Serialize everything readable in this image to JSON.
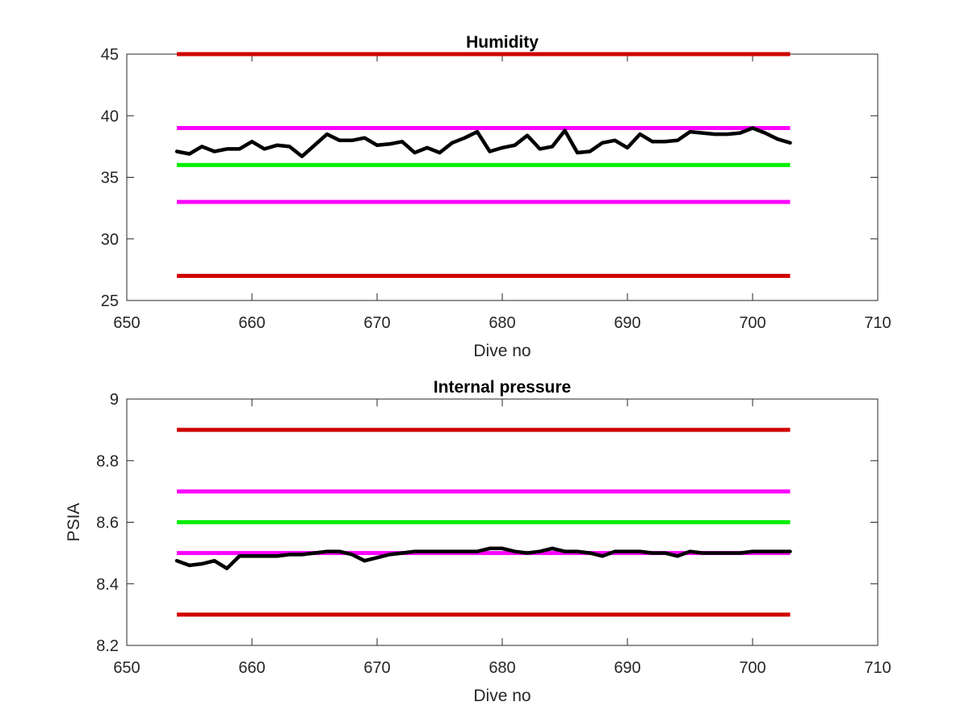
{
  "chart_data": [
    {
      "type": "line",
      "title": "Humidity",
      "xlabel": "Dive no",
      "ylabel": "",
      "xlim": [
        650,
        710
      ],
      "ylim": [
        25,
        45
      ],
      "xticks": [
        "650",
        "660",
        "670",
        "680",
        "690",
        "700",
        "710"
      ],
      "yticks": [
        "25",
        "30",
        "35",
        "40",
        "45"
      ],
      "grid": false,
      "legend": "none",
      "reference_lines": [
        {
          "y": 45,
          "x_range": [
            654,
            703
          ],
          "color": "#d00000"
        },
        {
          "y": 39,
          "x_range": [
            654,
            703
          ],
          "color": "#ff00ff"
        },
        {
          "y": 36,
          "x_range": [
            654,
            703
          ],
          "color": "#00ee00"
        },
        {
          "y": 33,
          "x_range": [
            654,
            703
          ],
          "color": "#ff00ff"
        },
        {
          "y": 27,
          "x_range": [
            654,
            703
          ],
          "color": "#d00000"
        }
      ],
      "series": [
        {
          "color": "#000000",
          "x": [
            654,
            655,
            656,
            657,
            658,
            659,
            660,
            661,
            662,
            663,
            664,
            665,
            666,
            667,
            668,
            669,
            670,
            671,
            672,
            673,
            674,
            675,
            676,
            677,
            678,
            679,
            680,
            681,
            682,
            683,
            684,
            685,
            686,
            687,
            688,
            689,
            690,
            691,
            692,
            693,
            694,
            695,
            696,
            697,
            698,
            699,
            700,
            701,
            702,
            703
          ],
          "y": [
            37.1,
            36.9,
            37.5,
            37.1,
            37.3,
            37.3,
            37.9,
            37.3,
            37.6,
            37.5,
            36.7,
            37.6,
            38.5,
            38.0,
            38.0,
            38.2,
            37.6,
            37.7,
            37.9,
            37.0,
            37.4,
            37.0,
            37.8,
            38.2,
            38.7,
            37.1,
            37.4,
            37.6,
            38.4,
            37.3,
            37.5,
            38.8,
            37.0,
            37.1,
            37.8,
            38.0,
            37.4,
            38.5,
            37.9,
            37.9,
            38.0,
            38.7,
            38.6,
            38.5,
            38.5,
            38.6,
            39.0,
            38.6,
            38.1,
            37.8
          ]
        }
      ]
    },
    {
      "type": "line",
      "title": "Internal pressure",
      "xlabel": "Dive no",
      "ylabel": "PSIA",
      "xlim": [
        650,
        710
      ],
      "ylim": [
        8.2,
        9.0
      ],
      "xticks": [
        "650",
        "660",
        "670",
        "680",
        "690",
        "700",
        "710"
      ],
      "yticks": [
        "8.2",
        "8.4",
        "8.6",
        "8.8",
        "9"
      ],
      "grid": false,
      "legend": "none",
      "reference_lines": [
        {
          "y": 8.9,
          "x_range": [
            654,
            703
          ],
          "color": "#d00000"
        },
        {
          "y": 8.7,
          "x_range": [
            654,
            703
          ],
          "color": "#ff00ff"
        },
        {
          "y": 8.6,
          "x_range": [
            654,
            703
          ],
          "color": "#00ee00"
        },
        {
          "y": 8.5,
          "x_range": [
            654,
            703
          ],
          "color": "#ff00ff"
        },
        {
          "y": 8.3,
          "x_range": [
            654,
            703
          ],
          "color": "#d00000"
        }
      ],
      "series": [
        {
          "color": "#000000",
          "x": [
            654,
            655,
            656,
            657,
            658,
            659,
            660,
            661,
            662,
            663,
            664,
            665,
            666,
            667,
            668,
            669,
            670,
            671,
            672,
            673,
            674,
            675,
            676,
            677,
            678,
            679,
            680,
            681,
            682,
            683,
            684,
            685,
            686,
            687,
            688,
            689,
            690,
            691,
            692,
            693,
            694,
            695,
            696,
            697,
            698,
            699,
            700,
            701,
            702,
            703
          ],
          "y": [
            8.475,
            8.46,
            8.465,
            8.475,
            8.45,
            8.49,
            8.49,
            8.49,
            8.49,
            8.495,
            8.495,
            8.5,
            8.505,
            8.505,
            8.495,
            8.475,
            8.485,
            8.495,
            8.5,
            8.505,
            8.505,
            8.505,
            8.505,
            8.505,
            8.505,
            8.515,
            8.515,
            8.505,
            8.5,
            8.505,
            8.515,
            8.505,
            8.505,
            8.5,
            8.49,
            8.505,
            8.505,
            8.505,
            8.5,
            8.5,
            8.49,
            8.505,
            8.5,
            8.5,
            8.5,
            8.5,
            8.505,
            8.505,
            8.505,
            8.505
          ]
        }
      ]
    }
  ]
}
